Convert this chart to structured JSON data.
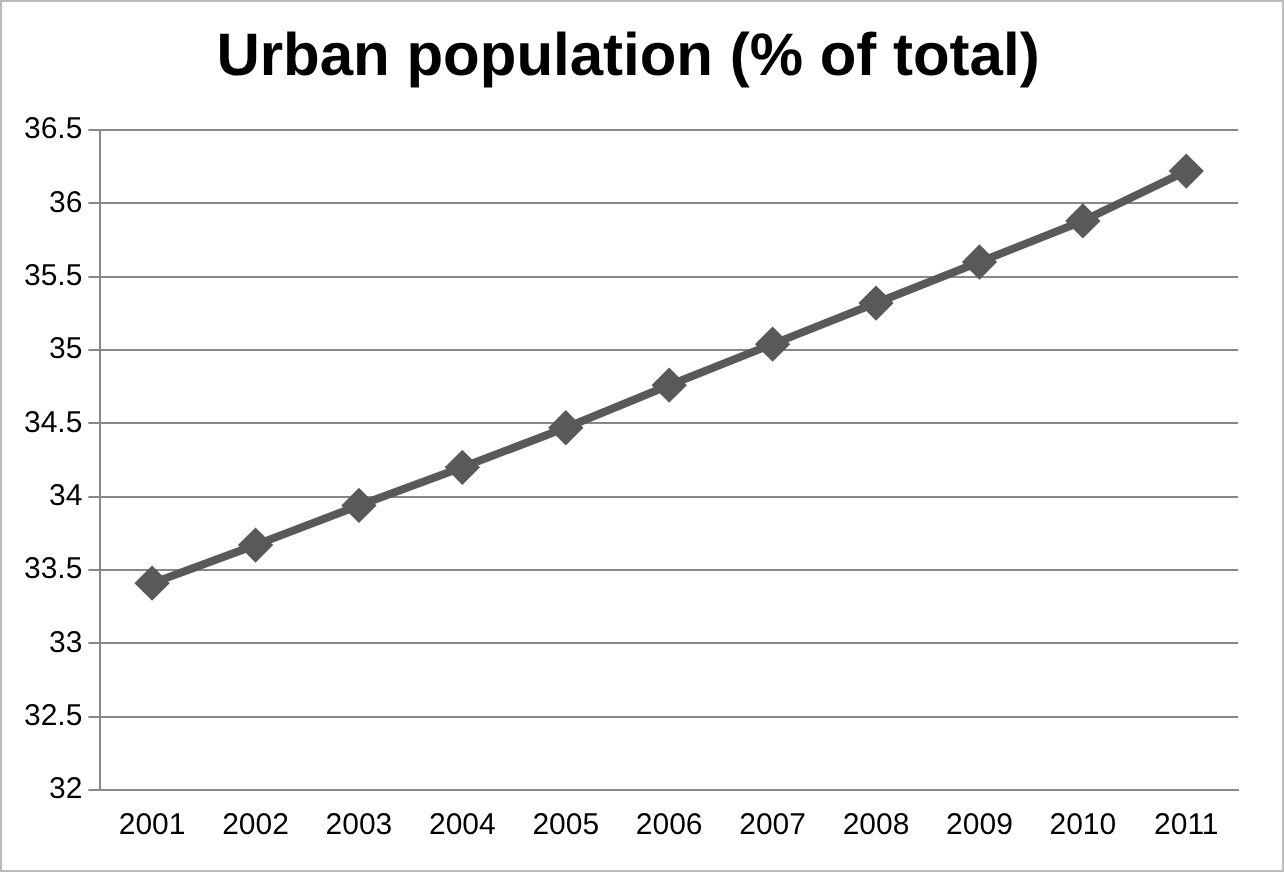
{
  "chart_data": {
    "type": "line",
    "title": "Urban population (% of total)",
    "categories": [
      "2001",
      "2002",
      "2003",
      "2004",
      "2005",
      "2006",
      "2007",
      "2008",
      "2009",
      "2010",
      "2011"
    ],
    "series": [
      {
        "color": "#595959",
        "values": [
          33.41,
          33.67,
          33.94,
          34.2,
          34.47,
          34.76,
          35.04,
          35.32,
          35.6,
          35.88,
          36.22
        ]
      }
    ],
    "ylim": [
      32,
      36.5
    ],
    "yticks": [
      32,
      32.5,
      33,
      33.5,
      34,
      34.5,
      35,
      35.5,
      36,
      36.5
    ],
    "grid": "y",
    "legend": false,
    "marker": "diamond",
    "line_style": "solid"
  }
}
